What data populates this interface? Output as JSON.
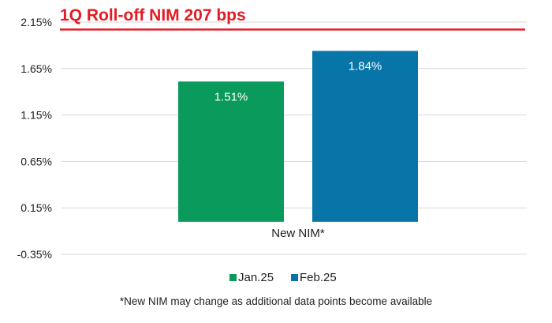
{
  "chart_data": {
    "type": "bar",
    "title": "1Q Roll-off NIM 207 bps",
    "reference_line": {
      "value": 2.07,
      "color": "#e31b23"
    },
    "categories": [
      "New NIM*"
    ],
    "series": [
      {
        "name": "Jan.25",
        "values": [
          1.51
        ],
        "labels": [
          "1.51%"
        ],
        "color": "#0a9a5b"
      },
      {
        "name": "Feb.25",
        "values": [
          1.84
        ],
        "labels": [
          "1.84%"
        ],
        "color": "#0775a8"
      }
    ],
    "y_ticks": [
      "2.15%",
      "1.65%",
      "1.15%",
      "0.65%",
      "0.15%",
      "-0.35%"
    ],
    "y_tick_values": [
      2.15,
      1.65,
      1.15,
      0.65,
      0.15,
      -0.35
    ],
    "ylim": [
      -0.35,
      2.15
    ],
    "baseline": 0.0,
    "grid": true,
    "legend": "bottom-center",
    "footnote": "*New NIM may change as additional data points become available"
  },
  "colors": {
    "title": "#e31b23",
    "grid": "#d9d9d9",
    "text": "#222222"
  }
}
